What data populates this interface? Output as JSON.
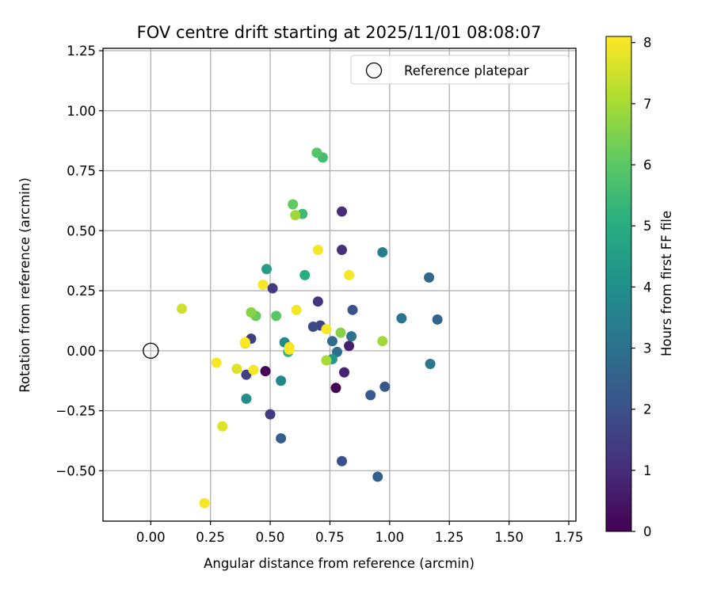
{
  "chart_data": {
    "type": "scatter",
    "title": "FOV centre drift starting at 2025/11/01 08:08:07",
    "xlabel": "Angular distance from reference (arcmin)",
    "ylabel": "Rotation from reference (arcmin)",
    "xlim": [
      -0.2,
      1.78
    ],
    "ylim": [
      -0.71,
      1.26
    ],
    "xticks": [
      0.0,
      0.25,
      0.5,
      0.75,
      1.0,
      1.25,
      1.5,
      1.75
    ],
    "xtick_labels": [
      "0.00",
      "0.25",
      "0.50",
      "0.75",
      "1.00",
      "1.25",
      "1.50",
      "1.75"
    ],
    "yticks": [
      -0.5,
      -0.25,
      0.0,
      0.25,
      0.5,
      0.75,
      1.0,
      1.25
    ],
    "ytick_labels": [
      "−0.50",
      "−0.25",
      "0.00",
      "0.25",
      "0.50",
      "0.75",
      "1.00",
      "1.25"
    ],
    "grid": true,
    "legend": {
      "placement": "top-right",
      "entries": [
        "Reference platepar"
      ]
    },
    "reference_point": {
      "x": 0.0,
      "y": 0.0,
      "label": "Reference platepar"
    },
    "colorbar": {
      "label": "Hours from first FF file",
      "colormap": "viridis",
      "range": [
        0,
        8.1
      ],
      "ticks": [
        0,
        1,
        2,
        3,
        4,
        5,
        6,
        7,
        8
      ],
      "tick_labels": [
        "0",
        "1",
        "2",
        "3",
        "4",
        "5",
        "6",
        "7",
        "8"
      ]
    },
    "points": [
      {
        "x": 0.48,
        "y": -0.085,
        "h": 0.1
      },
      {
        "x": 0.775,
        "y": -0.155,
        "h": 0.0
      },
      {
        "x": 0.83,
        "y": 0.02,
        "h": 0.7
      },
      {
        "x": 0.81,
        "y": -0.09,
        "h": 0.8
      },
      {
        "x": 0.8,
        "y": 0.58,
        "h": 1.0
      },
      {
        "x": 0.8,
        "y": 0.42,
        "h": 1.1
      },
      {
        "x": 0.7,
        "y": 0.205,
        "h": 1.2
      },
      {
        "x": 0.51,
        "y": 0.26,
        "h": 1.3
      },
      {
        "x": 0.5,
        "y": -0.265,
        "h": 1.4
      },
      {
        "x": 0.42,
        "y": 0.05,
        "h": 1.5
      },
      {
        "x": 0.4,
        "y": -0.1,
        "h": 1.6
      },
      {
        "x": 0.71,
        "y": 0.105,
        "h": 1.7
      },
      {
        "x": 0.68,
        "y": 0.1,
        "h": 1.8
      },
      {
        "x": 0.8,
        "y": -0.46,
        "h": 2.0
      },
      {
        "x": 0.845,
        "y": 0.17,
        "h": 2.1
      },
      {
        "x": 0.98,
        "y": -0.15,
        "h": 2.2
      },
      {
        "x": 0.92,
        "y": -0.185,
        "h": 2.3
      },
      {
        "x": 0.545,
        "y": -0.365,
        "h": 2.4
      },
      {
        "x": 0.95,
        "y": -0.525,
        "h": 2.5
      },
      {
        "x": 1.2,
        "y": 0.13,
        "h": 2.6
      },
      {
        "x": 1.165,
        "y": 0.305,
        "h": 2.7
      },
      {
        "x": 0.76,
        "y": 0.04,
        "h": 2.8
      },
      {
        "x": 0.78,
        "y": -0.005,
        "h": 2.9
      },
      {
        "x": 0.84,
        "y": 0.06,
        "h": 3.0
      },
      {
        "x": 1.05,
        "y": 0.135,
        "h": 3.1
      },
      {
        "x": 1.17,
        "y": -0.055,
        "h": 3.2
      },
      {
        "x": 0.97,
        "y": 0.41,
        "h": 3.4
      },
      {
        "x": 0.545,
        "y": -0.125,
        "h": 3.7
      },
      {
        "x": 0.56,
        "y": 0.035,
        "h": 3.8
      },
      {
        "x": 0.4,
        "y": -0.2,
        "h": 4.0
      },
      {
        "x": 0.76,
        "y": -0.035,
        "h": 4.3
      },
      {
        "x": 0.485,
        "y": 0.34,
        "h": 4.5
      },
      {
        "x": 0.645,
        "y": 0.315,
        "h": 5.0
      },
      {
        "x": 0.575,
        "y": -0.005,
        "h": 5.3
      },
      {
        "x": 0.635,
        "y": 0.57,
        "h": 5.5
      },
      {
        "x": 0.72,
        "y": 0.805,
        "h": 5.6
      },
      {
        "x": 0.695,
        "y": 0.825,
        "h": 5.9
      },
      {
        "x": 0.525,
        "y": 0.145,
        "h": 6.0
      },
      {
        "x": 0.595,
        "y": 0.61,
        "h": 6.1
      },
      {
        "x": 0.44,
        "y": 0.145,
        "h": 6.2
      },
      {
        "x": 0.795,
        "y": 0.075,
        "h": 6.6
      },
      {
        "x": 0.42,
        "y": 0.16,
        "h": 6.6
      },
      {
        "x": 0.605,
        "y": 0.565,
        "h": 6.9
      },
      {
        "x": 0.97,
        "y": 0.04,
        "h": 6.9
      },
      {
        "x": 0.735,
        "y": -0.04,
        "h": 7.0
      },
      {
        "x": 0.13,
        "y": 0.175,
        "h": 7.5
      },
      {
        "x": 0.395,
        "y": 0.03,
        "h": 7.6
      },
      {
        "x": 0.3,
        "y": -0.315,
        "h": 7.7
      },
      {
        "x": 0.36,
        "y": -0.075,
        "h": 7.7
      },
      {
        "x": 0.58,
        "y": 0.015,
        "h": 7.9
      },
      {
        "x": 0.275,
        "y": -0.05,
        "h": 8.0
      },
      {
        "x": 0.225,
        "y": -0.635,
        "h": 8.0
      },
      {
        "x": 0.47,
        "y": 0.275,
        "h": 8.0
      },
      {
        "x": 0.43,
        "y": -0.08,
        "h": 8.0
      },
      {
        "x": 0.7,
        "y": 0.42,
        "h": 8.0
      },
      {
        "x": 0.83,
        "y": 0.315,
        "h": 8.0
      },
      {
        "x": 0.61,
        "y": 0.17,
        "h": 8.0
      },
      {
        "x": 0.735,
        "y": 0.09,
        "h": 8.0
      },
      {
        "x": 0.395,
        "y": 0.035,
        "h": 8.1
      },
      {
        "x": 0.58,
        "y": 0.005,
        "h": 8.1
      }
    ]
  }
}
